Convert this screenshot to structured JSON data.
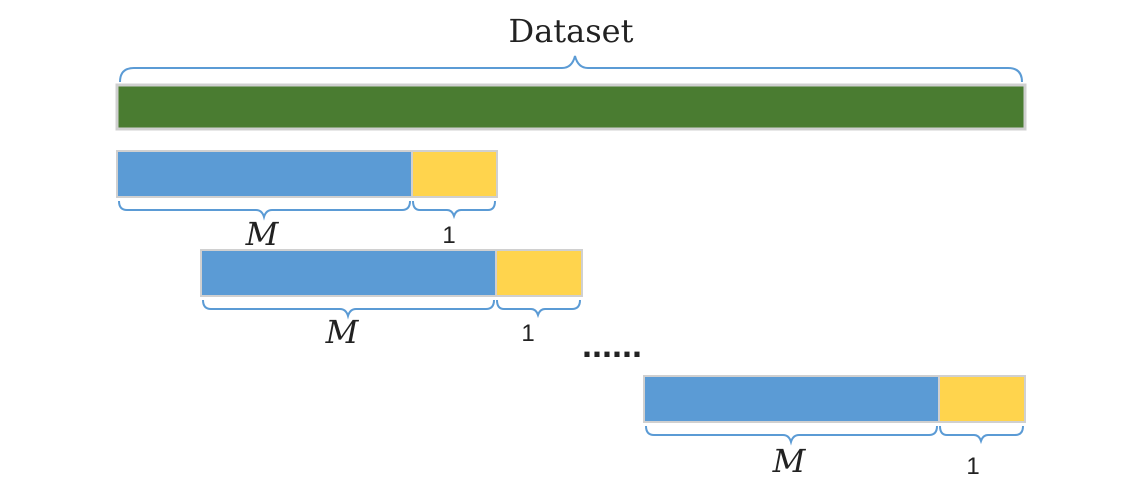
{
  "title": "Dataset",
  "windows": [
    {
      "train_label": "M",
      "test_label": "1"
    },
    {
      "train_label": "M",
      "test_label": "1"
    },
    {
      "train_label": "M",
      "test_label": "1"
    }
  ],
  "ellipsis": "......",
  "colors": {
    "dataset": "#4a7c31",
    "train": "#5b9bd5",
    "test": "#ffd44d",
    "brace": "#5b9bd5",
    "border": "#d0d0d0",
    "text": "#222222"
  }
}
